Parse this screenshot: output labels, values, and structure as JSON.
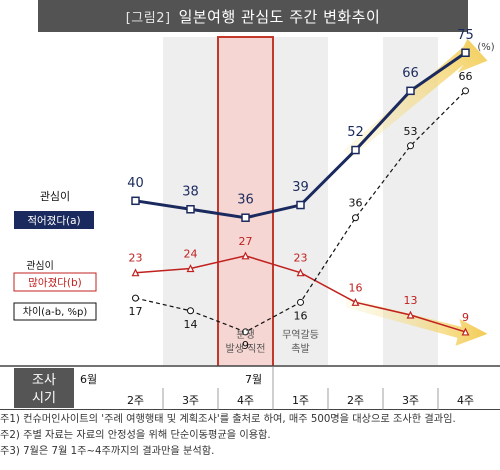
{
  "header": {
    "figure_tag": "[그림2]",
    "title": "일본여행 관심도 주간 변화추이"
  },
  "colors": {
    "interest_up": "#1b2a5e",
    "interest_down": "#c0211f",
    "difference": "#111111",
    "highlight_fill": "#f6d6d2",
    "highlight_border": "#c0392b",
    "band": "#eeeeee",
    "arrow": "#f2c94c"
  },
  "chart_data": {
    "type": "line",
    "unit": "(%)",
    "x": [
      "6월 2주",
      "6월 3주",
      "6월 4주",
      "7월 1주",
      "7월 2주",
      "7월 3주",
      "7월 4주"
    ],
    "ylim": [
      0,
      80
    ],
    "series": [
      {
        "name_line1": "관심이",
        "name_line2": "적어졌다(a)",
        "values": [
          40,
          38,
          36,
          39,
          52,
          66,
          75
        ]
      },
      {
        "name_line1": "관심이",
        "name_line2": "많아졌다(b)",
        "values": [
          23,
          24,
          27,
          23,
          16,
          13,
          9
        ]
      },
      {
        "name_line1": "",
        "name_line2": "차이(a-b, %p)",
        "values": [
          17,
          14,
          9,
          16,
          36,
          53,
          66
        ]
      }
    ],
    "annotations": [
      {
        "at": "6월 4주",
        "line1": "분쟁",
        "line2": "발생 직전"
      },
      {
        "at": "7월 1주",
        "line1": "무역갈등",
        "line2": "촉발"
      }
    ],
    "highlight": "6월 4주",
    "grid": false
  },
  "table": {
    "row_header_line1": "조사",
    "row_header_line2": "시기",
    "months": [
      "6월",
      "",
      "",
      "7월",
      "",
      "",
      ""
    ],
    "weeks": [
      "2주",
      "3주",
      "4주",
      "1주",
      "2주",
      "3주",
      "4주"
    ]
  },
  "notes": [
    "주1) 컨슈머인사이트의 '주례 여행행태 및 계획조사'를 출처로 하여, 매주 500명을 대상으로 조사한 결과임.",
    "주2) 주별 자료는 자료의 안정성을 위해 단순이동평균을 이용함.",
    "주3) 7월은 7월 1주~4주까지의 결과만을 분석함."
  ]
}
